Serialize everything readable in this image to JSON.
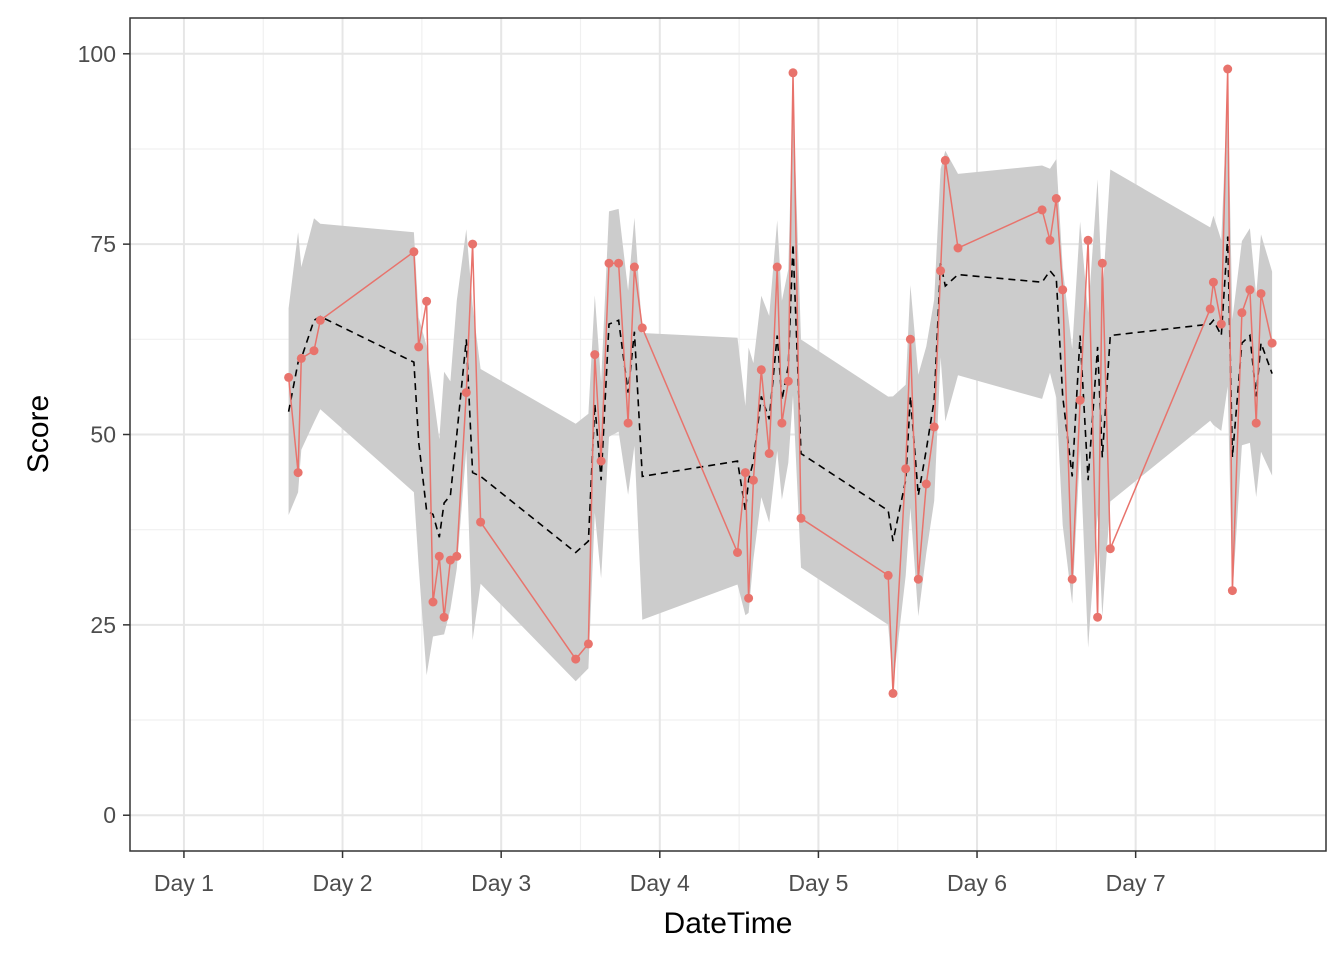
{
  "chart_data": {
    "type": "line",
    "xlabel": "DateTime",
    "ylabel": "Score",
    "x_tick_labels": [
      "Day 1",
      "Day 2",
      "Day 3",
      "Day 4",
      "Day 5",
      "Day 6",
      "Day 7"
    ],
    "y_ticks": [
      0,
      25,
      50,
      75,
      100
    ],
    "xlim": [
      0.66,
      8.2
    ],
    "ylim": [
      -4.7,
      104.7
    ],
    "grid": true,
    "legend": "none",
    "colors": {
      "observed": "#E8736C",
      "fitted": "#000000",
      "band": "#CCCCCC"
    },
    "series": [
      {
        "style": "points+line",
        "x": [
          1.66,
          1.72,
          1.74,
          1.82,
          1.86,
          2.45,
          2.48,
          2.53,
          2.57,
          2.61,
          2.64,
          2.68,
          2.72,
          2.78,
          2.82,
          2.87,
          3.47,
          3.55,
          3.59,
          3.63,
          3.68,
          3.74,
          3.8,
          3.84,
          3.89,
          4.49,
          4.54,
          4.56,
          4.59,
          4.64,
          4.69,
          4.74,
          4.77,
          4.81,
          4.84,
          4.89,
          5.44,
          5.47,
          5.55,
          5.58,
          5.63,
          5.68,
          5.73,
          5.77,
          5.8,
          5.88,
          6.41,
          6.46,
          6.5,
          6.54,
          6.6,
          6.65,
          6.7,
          6.76,
          6.79,
          6.84,
          7.47,
          7.49,
          7.54,
          7.58,
          7.61,
          7.67,
          7.72,
          7.76,
          7.79,
          7.86
        ],
        "y": [
          57.5,
          45,
          60,
          61,
          65,
          74,
          61.5,
          67.5,
          28,
          34,
          26,
          33.5,
          34,
          55.5,
          75,
          38.5,
          20.5,
          22.5,
          60.5,
          46.5,
          72.5,
          72.5,
          51.5,
          72,
          64,
          34.5,
          45,
          28.5,
          44,
          58.5,
          47.5,
          72,
          51.5,
          57,
          97.5,
          39,
          31.5,
          16,
          45.5,
          62.5,
          31,
          43.5,
          51,
          71.5,
          86,
          74.5,
          79.5,
          75.5,
          81,
          69,
          31,
          54.5,
          75.5,
          26,
          72.5,
          35,
          66.5,
          70,
          64.5,
          98,
          29.5,
          66,
          69,
          51.5,
          68.5,
          62
        ]
      },
      {
        "style": "dashed-line",
        "x": [
          1.66,
          1.72,
          1.74,
          1.82,
          1.86,
          2.45,
          2.48,
          2.53,
          2.57,
          2.61,
          2.64,
          2.68,
          2.72,
          2.78,
          2.82,
          2.87,
          3.47,
          3.55,
          3.59,
          3.63,
          3.68,
          3.74,
          3.8,
          3.84,
          3.89,
          4.49,
          4.54,
          4.56,
          4.59,
          4.64,
          4.69,
          4.74,
          4.77,
          4.81,
          4.84,
          4.89,
          5.44,
          5.47,
          5.55,
          5.58,
          5.63,
          5.68,
          5.73,
          5.77,
          5.8,
          5.88,
          6.41,
          6.46,
          6.5,
          6.54,
          6.6,
          6.65,
          6.7,
          6.76,
          6.79,
          6.84,
          7.47,
          7.49,
          7.54,
          7.58,
          7.61,
          7.67,
          7.72,
          7.76,
          7.79,
          7.86
        ],
        "y": [
          53,
          59.5,
          60,
          65,
          65.5,
          59.5,
          49,
          40,
          39.5,
          36.5,
          41,
          42,
          50,
          62.5,
          45,
          44.5,
          34.5,
          36,
          54,
          44,
          64.5,
          65,
          55.5,
          63.5,
          44.5,
          46.5,
          40,
          44,
          46.5,
          55,
          52,
          63,
          54.5,
          59,
          75,
          47.5,
          40,
          36,
          44,
          55,
          42,
          48,
          54.5,
          72.5,
          69.5,
          71,
          70,
          71.5,
          70.5,
          55,
          44.5,
          63,
          44,
          61.5,
          47,
          63,
          64.5,
          65,
          63,
          76,
          47,
          62,
          63,
          55,
          62,
          58
        ]
      }
    ]
  }
}
